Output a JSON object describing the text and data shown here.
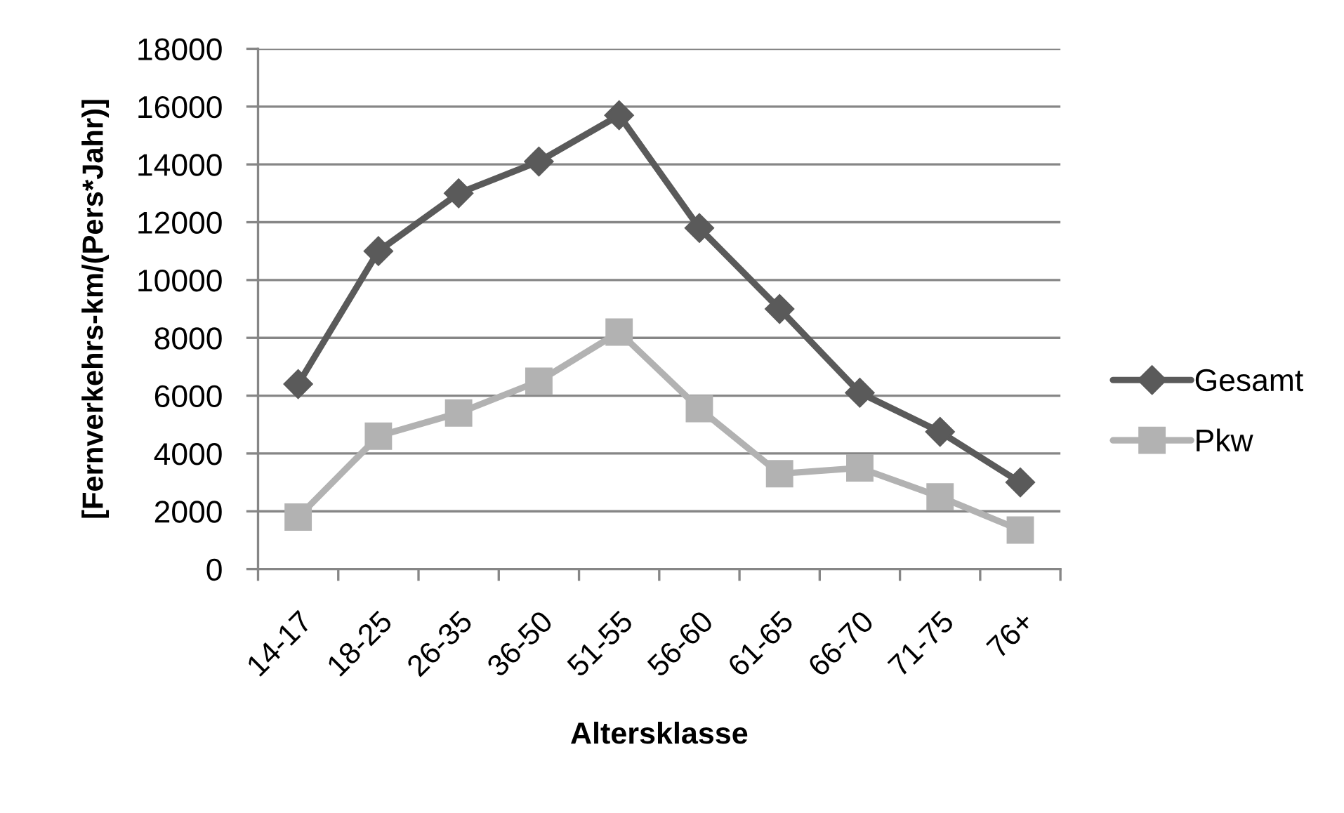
{
  "chart_data": {
    "type": "line",
    "xlabel": "Altersklasse",
    "ylabel": "[Fernverkehrs-km/(Pers*Jahr)]",
    "categories": [
      "14-17",
      "18-25",
      "26-35",
      "36-50",
      "51-55",
      "56-60",
      "61-65",
      "66-70",
      "71-75",
      "76+"
    ],
    "series": [
      {
        "name": "Gesamt",
        "color": "#5a5a5a",
        "marker": "diamond",
        "values": [
          6400,
          11000,
          13000,
          14100,
          15700,
          11800,
          9000,
          6100,
          4750,
          3000
        ]
      },
      {
        "name": "Pkw",
        "color": "#b2b2b2",
        "marker": "square",
        "values": [
          1800,
          4600,
          5400,
          6500,
          8200,
          5550,
          3300,
          3500,
          2500,
          1350
        ]
      }
    ],
    "ylim": [
      0,
      18000
    ],
    "yticks": [
      0,
      2000,
      4000,
      6000,
      8000,
      10000,
      12000,
      14000,
      16000,
      18000
    ],
    "grid": "y",
    "legend": "right",
    "line_style": "solid"
  }
}
